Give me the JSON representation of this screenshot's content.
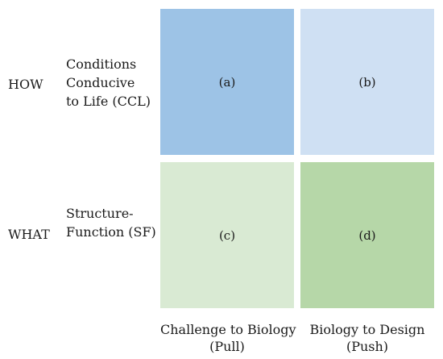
{
  "rows": {
    "how": {
      "label": "HOW",
      "description": [
        "Conditions",
        "Conducive",
        "to Life (CCL)"
      ]
    },
    "what": {
      "label": "WHAT",
      "description": [
        "Structure-",
        "Function (SF)"
      ]
    }
  },
  "cells": {
    "a": {
      "label": "(a)",
      "color": "#9dc3e6"
    },
    "b": {
      "label": "(b)",
      "color": "#cfe0f3"
    },
    "c": {
      "label": "(c)",
      "color": "#d9ead3"
    },
    "d": {
      "label": "(d)",
      "color": "#b6d7a8"
    }
  },
  "columns": {
    "pull": {
      "line1": "Challenge to Biology",
      "line2": "(Pull)"
    },
    "push": {
      "line1": "Biology to Design",
      "line2": "(Push)"
    }
  }
}
